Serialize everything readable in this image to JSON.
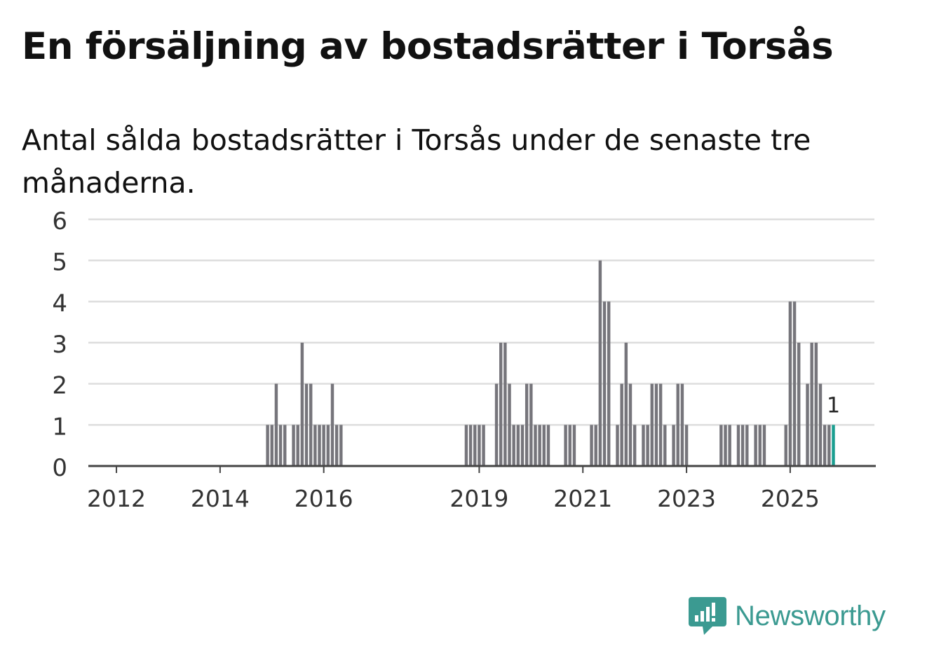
{
  "title": "En försäljning av bostadsrätter i Torsås",
  "subtitle": "Antal sålda bostadsrätter i Torsås under de senaste tre månaderna.",
  "brand": {
    "name": "Newsworthy",
    "color": "#3b9a91"
  },
  "colors": {
    "bar": "#76757b",
    "highlight": "#1a9e90",
    "grid": "#dddddd",
    "axis": "#444444"
  },
  "chart_data": {
    "type": "bar",
    "title": "En försäljning av bostadsrätter i Torsås",
    "xlabel": "",
    "ylabel": "",
    "ylim": [
      0,
      6
    ],
    "yticks": [
      0,
      1,
      2,
      3,
      4,
      5,
      6
    ],
    "grid": true,
    "x_unit": "month",
    "xlim": [
      "2011-07",
      "2026-09"
    ],
    "xticks": [
      {
        "label": "2012",
        "month": "2012-01"
      },
      {
        "label": "2014",
        "month": "2014-01"
      },
      {
        "label": "2016",
        "month": "2016-01"
      },
      {
        "label": "2019",
        "month": "2019-01"
      },
      {
        "label": "2021",
        "month": "2021-01"
      },
      {
        "label": "2023",
        "month": "2023-01"
      },
      {
        "label": "2025",
        "month": "2025-01"
      }
    ],
    "series": [
      {
        "name": "Antal sålda bostadsrätter",
        "points": [
          {
            "month": "2014-12",
            "value": 1
          },
          {
            "month": "2015-01",
            "value": 1
          },
          {
            "month": "2015-02",
            "value": 2
          },
          {
            "month": "2015-03",
            "value": 1
          },
          {
            "month": "2015-04",
            "value": 1
          },
          {
            "month": "2015-06",
            "value": 1
          },
          {
            "month": "2015-07",
            "value": 1
          },
          {
            "month": "2015-08",
            "value": 3
          },
          {
            "month": "2015-09",
            "value": 2
          },
          {
            "month": "2015-10",
            "value": 2
          },
          {
            "month": "2015-11",
            "value": 1
          },
          {
            "month": "2015-12",
            "value": 1
          },
          {
            "month": "2016-01",
            "value": 1
          },
          {
            "month": "2016-02",
            "value": 1
          },
          {
            "month": "2016-03",
            "value": 2
          },
          {
            "month": "2016-04",
            "value": 1
          },
          {
            "month": "2016-05",
            "value": 1
          },
          {
            "month": "2018-10",
            "value": 1
          },
          {
            "month": "2018-11",
            "value": 1
          },
          {
            "month": "2018-12",
            "value": 1
          },
          {
            "month": "2019-01",
            "value": 1
          },
          {
            "month": "2019-02",
            "value": 1
          },
          {
            "month": "2019-05",
            "value": 2
          },
          {
            "month": "2019-06",
            "value": 3
          },
          {
            "month": "2019-07",
            "value": 3
          },
          {
            "month": "2019-08",
            "value": 2
          },
          {
            "month": "2019-09",
            "value": 1
          },
          {
            "month": "2019-10",
            "value": 1
          },
          {
            "month": "2019-11",
            "value": 1
          },
          {
            "month": "2019-12",
            "value": 2
          },
          {
            "month": "2020-01",
            "value": 2
          },
          {
            "month": "2020-02",
            "value": 1
          },
          {
            "month": "2020-03",
            "value": 1
          },
          {
            "month": "2020-04",
            "value": 1
          },
          {
            "month": "2020-05",
            "value": 1
          },
          {
            "month": "2020-09",
            "value": 1
          },
          {
            "month": "2020-10",
            "value": 1
          },
          {
            "month": "2020-11",
            "value": 1
          },
          {
            "month": "2021-03",
            "value": 1
          },
          {
            "month": "2021-04",
            "value": 1
          },
          {
            "month": "2021-05",
            "value": 5
          },
          {
            "month": "2021-06",
            "value": 4
          },
          {
            "month": "2021-07",
            "value": 4
          },
          {
            "month": "2021-09",
            "value": 1
          },
          {
            "month": "2021-10",
            "value": 2
          },
          {
            "month": "2021-11",
            "value": 3
          },
          {
            "month": "2021-12",
            "value": 2
          },
          {
            "month": "2022-01",
            "value": 1
          },
          {
            "month": "2022-03",
            "value": 1
          },
          {
            "month": "2022-04",
            "value": 1
          },
          {
            "month": "2022-05",
            "value": 2
          },
          {
            "month": "2022-06",
            "value": 2
          },
          {
            "month": "2022-07",
            "value": 2
          },
          {
            "month": "2022-08",
            "value": 1
          },
          {
            "month": "2022-10",
            "value": 1
          },
          {
            "month": "2022-11",
            "value": 2
          },
          {
            "month": "2022-12",
            "value": 2
          },
          {
            "month": "2023-01",
            "value": 1
          },
          {
            "month": "2023-09",
            "value": 1
          },
          {
            "month": "2023-10",
            "value": 1
          },
          {
            "month": "2023-11",
            "value": 1
          },
          {
            "month": "2024-01",
            "value": 1
          },
          {
            "month": "2024-02",
            "value": 1
          },
          {
            "month": "2024-03",
            "value": 1
          },
          {
            "month": "2024-05",
            "value": 1
          },
          {
            "month": "2024-06",
            "value": 1
          },
          {
            "month": "2024-07",
            "value": 1
          },
          {
            "month": "2024-12",
            "value": 1
          },
          {
            "month": "2025-01",
            "value": 4
          },
          {
            "month": "2025-02",
            "value": 4
          },
          {
            "month": "2025-03",
            "value": 3
          },
          {
            "month": "2025-05",
            "value": 2
          },
          {
            "month": "2025-06",
            "value": 3
          },
          {
            "month": "2025-07",
            "value": 3
          },
          {
            "month": "2025-08",
            "value": 2
          },
          {
            "month": "2025-09",
            "value": 1
          },
          {
            "month": "2025-10",
            "value": 1
          },
          {
            "month": "2025-11",
            "value": 1,
            "highlight": true,
            "label": "1"
          }
        ]
      }
    ]
  }
}
